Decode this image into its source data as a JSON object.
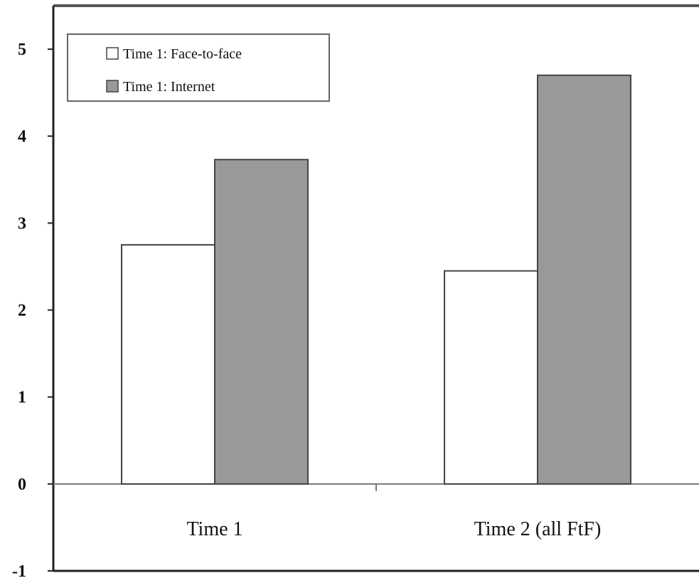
{
  "chart_data": {
    "type": "bar",
    "categories": [
      "Time 1",
      "Time 2 (all FtF)"
    ],
    "series": [
      {
        "name": "Time 1: Face-to-face",
        "values": [
          2.75,
          2.45
        ],
        "color": "#ffffff"
      },
      {
        "name": "Time 1: Internet",
        "values": [
          3.73,
          4.7
        ],
        "color": "#999999"
      }
    ],
    "yticks": [
      -1,
      0,
      1,
      2,
      3,
      4,
      5
    ],
    "ylim": [
      -1,
      5.5
    ],
    "title": "",
    "xlabel": "",
    "ylabel": "",
    "legend": "top-left",
    "grid": false
  }
}
